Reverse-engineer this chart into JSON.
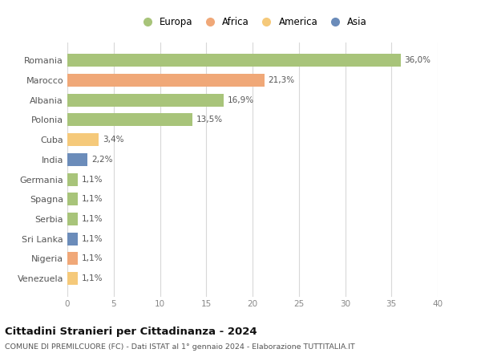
{
  "categories": [
    "Venezuela",
    "Nigeria",
    "Sri Lanka",
    "Serbia",
    "Spagna",
    "Germania",
    "India",
    "Cuba",
    "Polonia",
    "Albania",
    "Marocco",
    "Romania"
  ],
  "values": [
    1.1,
    1.1,
    1.1,
    1.1,
    1.1,
    1.1,
    2.2,
    3.4,
    13.5,
    16.9,
    21.3,
    36.0
  ],
  "labels": [
    "1,1%",
    "1,1%",
    "1,1%",
    "1,1%",
    "1,1%",
    "1,1%",
    "2,2%",
    "3,4%",
    "13,5%",
    "16,9%",
    "21,3%",
    "36,0%"
  ],
  "colors": [
    "#f5c97a",
    "#f0a878",
    "#6b8cba",
    "#a8c47a",
    "#a8c47a",
    "#a8c47a",
    "#6b8cba",
    "#f5c97a",
    "#a8c47a",
    "#a8c47a",
    "#f0a878",
    "#a8c47a"
  ],
  "legend_labels": [
    "Europa",
    "Africa",
    "America",
    "Asia"
  ],
  "legend_colors": [
    "#a8c47a",
    "#f0a878",
    "#f5c97a",
    "#6b8cba"
  ],
  "title": "Cittadini Stranieri per Cittadinanza - 2024",
  "subtitle": "COMUNE DI PREMILCUORE (FC) - Dati ISTAT al 1° gennaio 2024 - Elaborazione TUTTITALIA.IT",
  "xlim": [
    0,
    40
  ],
  "xticks": [
    0,
    5,
    10,
    15,
    20,
    25,
    30,
    35,
    40
  ],
  "background_color": "#ffffff",
  "grid_color": "#d8d8d8",
  "bar_height": 0.65
}
